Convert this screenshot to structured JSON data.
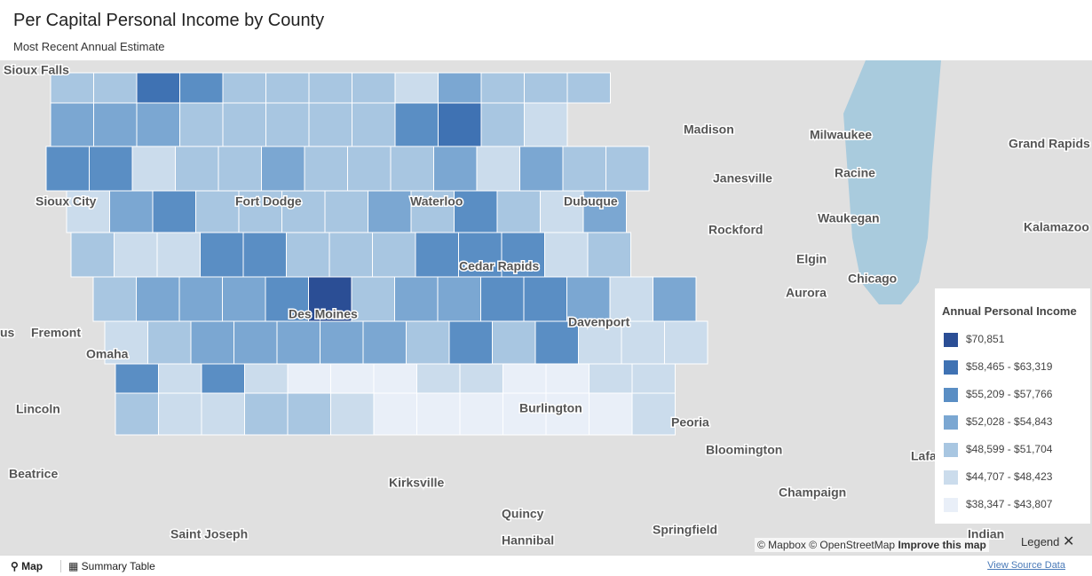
{
  "header": {
    "title": "Per Capital Personal Income by County",
    "subtitle": "Most Recent Annual Estimate"
  },
  "places": [
    "Sioux Falls",
    "Sioux City",
    "Fort Dodge",
    "Waterloo",
    "Dubuque",
    "Cedar Rapids",
    "Des Moines",
    "Davenport",
    "Omaha",
    "Fremont",
    "Lincoln",
    "Beatrice",
    "Burlington",
    "Kirksville",
    "Quincy",
    "Hannibal",
    "Saint Joseph",
    "Peoria",
    "Bloomington",
    "Champaign",
    "Springfield",
    "Madison",
    "Milwaukee",
    "Janesville",
    "Racine",
    "Waukegan",
    "Rockford",
    "Elgin",
    "Aurora",
    "Chicago",
    "Grand Rapids",
    "Kalamazoo",
    "Lafa",
    "Indian",
    "us"
  ],
  "legend": {
    "title": "Annual Personal Income",
    "toggle": "Legend",
    "items": [
      {
        "label": "$70,851",
        "color": "#2b4e95"
      },
      {
        "label": "$58,465 - $63,319",
        "color": "#3f72b3"
      },
      {
        "label": "$55,209 - $57,766",
        "color": "#5a8ec4"
      },
      {
        "label": "$52,028 - $54,843",
        "color": "#7ba7d2"
      },
      {
        "label": "$48,599 - $51,704",
        "color": "#a8c6e1"
      },
      {
        "label": "$44,707 - $48,423",
        "color": "#cbdcec"
      },
      {
        "label": "$38,347 - $43,807",
        "color": "#e9eff8"
      }
    ]
  },
  "attribution": {
    "mapbox": "© Mapbox",
    "osm": "© OpenStreetMap",
    "improve": "Improve this map"
  },
  "tabs": [
    "Map",
    "Summary Table"
  ],
  "source": "View Source Data"
}
